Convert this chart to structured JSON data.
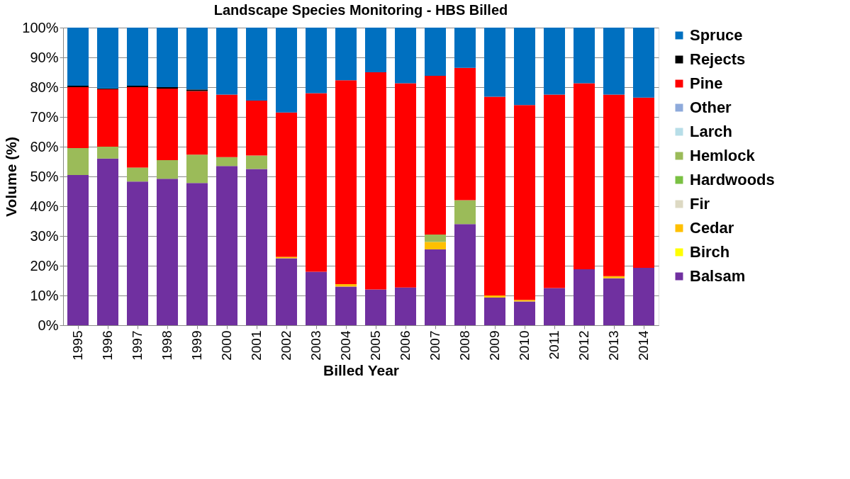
{
  "chart_data": {
    "type": "bar",
    "stacked": true,
    "title": "Landscape Species Monitoring - HBS Billed",
    "xlabel": "Billed Year",
    "ylabel": "Volume (%)",
    "categories": [
      "1995",
      "1996",
      "1997",
      "1998",
      "1999",
      "2000",
      "2001",
      "2002",
      "2003",
      "2004",
      "2005",
      "2006",
      "2007",
      "2008",
      "2009",
      "2010",
      "2011",
      "2012",
      "2013",
      "2014"
    ],
    "series": [
      {
        "name": "Balsam",
        "color": "#7030a0",
        "values": [
          50.5,
          56,
          48.3,
          49.2,
          47.8,
          53.5,
          52.5,
          22.5,
          18,
          13,
          12,
          12.7,
          25.5,
          34,
          9.3,
          8,
          12.5,
          18.8,
          15.8,
          19.3
        ]
      },
      {
        "name": "Birch",
        "color": "#ffff00",
        "values": [
          0,
          0,
          0,
          0,
          0,
          0,
          0,
          0,
          0,
          0,
          0,
          0,
          0,
          0,
          0,
          0,
          0,
          0,
          0,
          0
        ]
      },
      {
        "name": "Cedar",
        "color": "#ffc000",
        "values": [
          0,
          0,
          0,
          0,
          0,
          0,
          0,
          0.5,
          0,
          0.8,
          0,
          0,
          2.5,
          0,
          0.7,
          0.5,
          0,
          0,
          0.7,
          0
        ]
      },
      {
        "name": "Fir",
        "color": "#ddd9c3",
        "values": [
          0,
          0,
          0,
          0,
          0,
          0,
          0,
          0,
          0,
          0,
          0,
          0,
          0,
          0,
          0,
          0,
          0,
          0,
          0,
          0
        ]
      },
      {
        "name": "Hardwoods",
        "color": "#7ac143",
        "values": [
          0,
          0,
          0,
          0,
          0,
          0,
          0,
          0,
          0,
          0,
          0,
          0,
          0,
          0,
          0,
          0,
          0,
          0,
          0,
          0
        ]
      },
      {
        "name": "Hemlock",
        "color": "#9bbb59",
        "values": [
          9,
          4,
          4.7,
          6.3,
          9.5,
          3,
          4.5,
          0,
          0,
          0,
          0,
          0,
          2.5,
          8,
          0,
          0,
          0,
          0,
          0,
          0
        ]
      },
      {
        "name": "Larch",
        "color": "#b7dee8",
        "values": [
          0,
          0,
          0,
          0,
          0,
          0,
          0,
          0,
          0,
          0,
          0,
          0,
          0,
          0,
          0,
          0,
          0,
          0,
          0,
          0
        ]
      },
      {
        "name": "Other",
        "color": "#8eaadb",
        "values": [
          0,
          0,
          0,
          0,
          0,
          0,
          0,
          0,
          0,
          0,
          0,
          0,
          0,
          0,
          0,
          0,
          0,
          0,
          0,
          0
        ]
      },
      {
        "name": "Pine",
        "color": "#ff0000",
        "values": [
          20.5,
          19.3,
          27,
          24,
          21.4,
          21,
          18.5,
          48.5,
          60,
          68.5,
          73,
          68.6,
          53.3,
          44.5,
          66.8,
          65.5,
          65,
          62.5,
          61,
          57.2
        ]
      },
      {
        "name": "Rejects",
        "color": "#000000",
        "values": [
          0.5,
          0.3,
          0.5,
          0.5,
          0.5,
          0,
          0,
          0,
          0,
          0,
          0,
          0,
          0,
          0,
          0,
          0,
          0,
          0,
          0,
          0
        ]
      },
      {
        "name": "Spruce",
        "color": "#0070c0",
        "values": [
          19.5,
          20.4,
          19.5,
          20,
          20.8,
          22.5,
          24.5,
          28.5,
          22,
          17.7,
          15,
          18.7,
          16.2,
          13.5,
          23.2,
          26,
          22.5,
          18.7,
          22.5,
          23.5
        ]
      }
    ],
    "ylim": [
      0,
      100
    ],
    "yticks": [
      {
        "value": 0,
        "label": "0%"
      },
      {
        "value": 10,
        "label": "10%"
      },
      {
        "value": 20,
        "label": "20%"
      },
      {
        "value": 30,
        "label": "30%"
      },
      {
        "value": 40,
        "label": "40%"
      },
      {
        "value": 50,
        "label": "50%"
      },
      {
        "value": 60,
        "label": "60%"
      },
      {
        "value": 70,
        "label": "70%"
      },
      {
        "value": 80,
        "label": "80%"
      },
      {
        "value": 90,
        "label": "90%"
      },
      {
        "value": 100,
        "label": "100%"
      }
    ],
    "grid": "y",
    "legend": "right"
  }
}
